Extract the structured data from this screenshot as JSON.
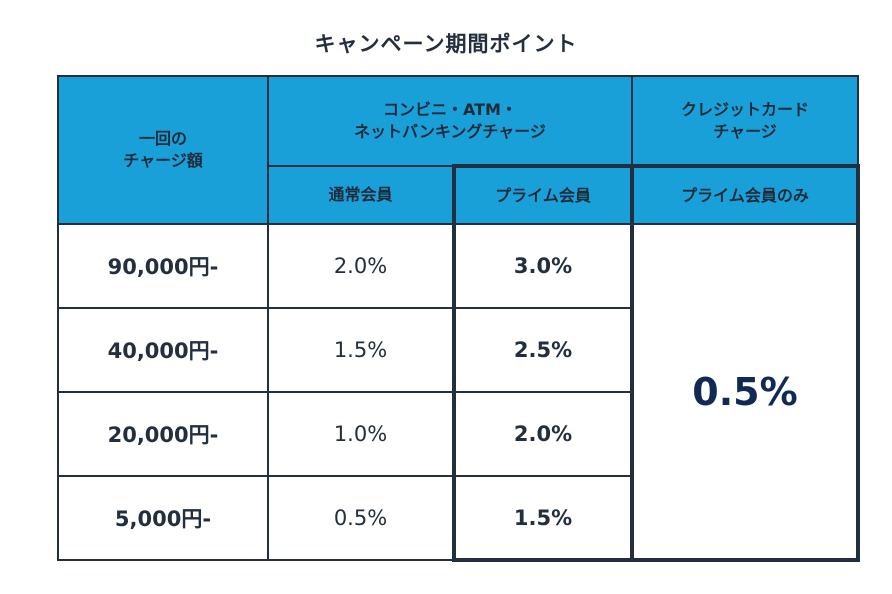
{
  "title": "キャンペーン期間ポイント",
  "headers": {
    "amount_line1": "一回の",
    "amount_line2": "チャージ額",
    "group1_line1": "コンビニ・ATM・",
    "group1_line2": "ネットバンキングチャージ",
    "group2_line1": "クレジットカード",
    "group2_line2": "チャージ",
    "regular_member": "通常会員",
    "prime_member": "プライム会員",
    "prime_only": "プライム会員のみ"
  },
  "rows": [
    {
      "amount": "90,000円-",
      "regular": "2.0%",
      "prime": "3.0%"
    },
    {
      "amount": "40,000円-",
      "regular": "1.5%",
      "prime": "2.5%"
    },
    {
      "amount": "20,000円-",
      "regular": "1.0%",
      "prime": "2.0%"
    },
    {
      "amount": "5,000円-",
      "regular": "0.5%",
      "prime": "1.5%"
    }
  ],
  "credit_card_rate": "0.5%",
  "colors": {
    "header_bg": "#1aa0d8",
    "border": "#232f3e",
    "text_dark": "#232f3e",
    "emphasis": "#102a55"
  }
}
